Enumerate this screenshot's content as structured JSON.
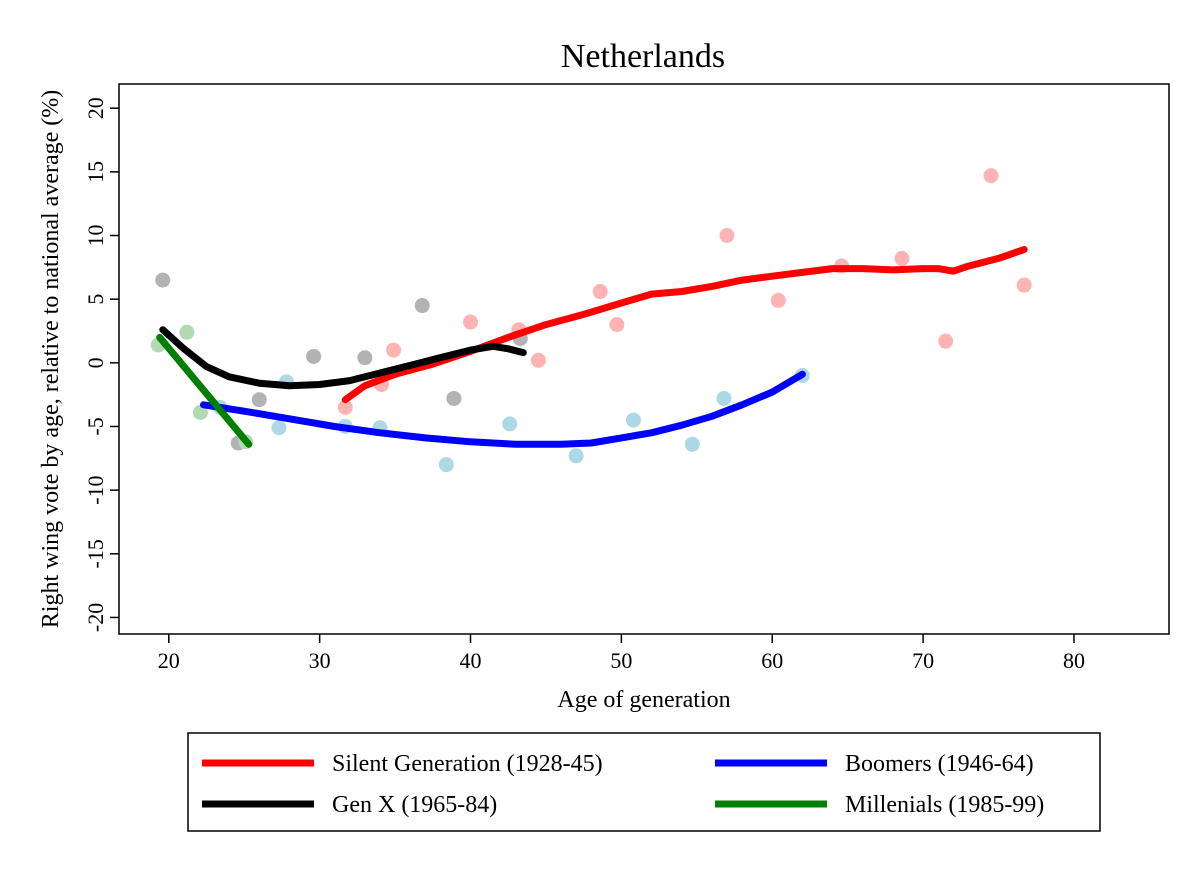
{
  "chart_data": {
    "type": "line",
    "title": "Netherlands",
    "xlabel": "Age of generation",
    "ylabel": "Right wing vote by age, relative to national average (%)",
    "xlim": [
      16.7,
      86.3
    ],
    "ylim": [
      -21.3,
      21.9
    ],
    "xticks": [
      20,
      30,
      40,
      50,
      60,
      70,
      80
    ],
    "yticks": [
      -20,
      -15,
      -10,
      -5,
      0,
      5,
      10,
      15,
      20
    ],
    "grid": false,
    "legend_position": "bottom",
    "series": [
      {
        "name": "Silent Generation (1928-45)",
        "color": "#ff0000",
        "point_color": "#ffb3b3",
        "points": [
          [
            31.7,
            -3.5
          ],
          [
            34.1,
            -1.7
          ],
          [
            34.9,
            1.0
          ],
          [
            40.0,
            3.2
          ],
          [
            43.2,
            2.6
          ],
          [
            44.5,
            0.2
          ],
          [
            48.6,
            5.6
          ],
          [
            49.7,
            3.0
          ],
          [
            57.0,
            10.0
          ],
          [
            60.4,
            4.9
          ],
          [
            64.6,
            7.6
          ],
          [
            68.6,
            8.2
          ],
          [
            71.5,
            1.7
          ],
          [
            74.5,
            14.7
          ],
          [
            76.7,
            6.1
          ]
        ],
        "fit": [
          [
            31.7,
            -2.9
          ],
          [
            33.0,
            -1.8
          ],
          [
            35.0,
            -0.9
          ],
          [
            37.5,
            -0.1
          ],
          [
            40.0,
            0.9
          ],
          [
            42.5,
            2.0
          ],
          [
            45.0,
            3.0
          ],
          [
            47.5,
            3.8
          ],
          [
            50.0,
            4.7
          ],
          [
            52.0,
            5.4
          ],
          [
            54.0,
            5.6
          ],
          [
            56.0,
            6.0
          ],
          [
            58.0,
            6.5
          ],
          [
            60.0,
            6.8
          ],
          [
            62.0,
            7.1
          ],
          [
            64.0,
            7.4
          ],
          [
            66.0,
            7.4
          ],
          [
            68.0,
            7.3
          ],
          [
            70.0,
            7.4
          ],
          [
            71.0,
            7.4
          ],
          [
            72.0,
            7.2
          ],
          [
            73.0,
            7.6
          ],
          [
            75.0,
            8.2
          ],
          [
            76.7,
            8.9
          ]
        ]
      },
      {
        "name": "Boomers (1946-64)",
        "color": "#0000ff",
        "point_color": "#add8e6",
        "points": [
          [
            23.4,
            -3.5
          ],
          [
            27.3,
            -5.1
          ],
          [
            27.8,
            -1.5
          ],
          [
            31.7,
            -5.0
          ],
          [
            34.0,
            -5.1
          ],
          [
            38.4,
            -8.0
          ],
          [
            42.6,
            -4.8
          ],
          [
            47.0,
            -7.3
          ],
          [
            50.8,
            -4.5
          ],
          [
            54.7,
            -6.4
          ],
          [
            56.8,
            -2.8
          ],
          [
            62.0,
            -1.0
          ]
        ],
        "fit": [
          [
            22.3,
            -3.3
          ],
          [
            25.0,
            -3.8
          ],
          [
            28.0,
            -4.4
          ],
          [
            31.0,
            -5.0
          ],
          [
            34.0,
            -5.5
          ],
          [
            37.0,
            -5.9
          ],
          [
            40.0,
            -6.2
          ],
          [
            43.0,
            -6.4
          ],
          [
            46.0,
            -6.4
          ],
          [
            48.0,
            -6.3
          ],
          [
            50.0,
            -5.9
          ],
          [
            52.0,
            -5.5
          ],
          [
            54.0,
            -4.9
          ],
          [
            56.0,
            -4.2
          ],
          [
            58.0,
            -3.3
          ],
          [
            60.0,
            -2.3
          ],
          [
            62.0,
            -0.9
          ]
        ]
      },
      {
        "name": "Gen X (1965-84)",
        "color": "#000000",
        "point_color": "#b3b3b3",
        "points": [
          [
            19.6,
            6.5
          ],
          [
            24.6,
            -6.3
          ],
          [
            26.0,
            -2.9
          ],
          [
            29.6,
            0.5
          ],
          [
            33.0,
            0.4
          ],
          [
            36.8,
            4.5
          ],
          [
            38.9,
            -2.8
          ],
          [
            43.3,
            1.9
          ]
        ],
        "fit": [
          [
            19.6,
            2.6
          ],
          [
            21.0,
            1.1
          ],
          [
            22.5,
            -0.3
          ],
          [
            24.0,
            -1.1
          ],
          [
            26.0,
            -1.6
          ],
          [
            28.0,
            -1.8
          ],
          [
            30.0,
            -1.7
          ],
          [
            32.0,
            -1.4
          ],
          [
            34.0,
            -0.8
          ],
          [
            36.0,
            -0.2
          ],
          [
            38.0,
            0.4
          ],
          [
            40.0,
            1.0
          ],
          [
            41.5,
            1.3
          ],
          [
            42.5,
            1.1
          ],
          [
            43.5,
            0.8
          ]
        ]
      },
      {
        "name": "Millenials (1985-99)",
        "color": "#007f00",
        "point_color": "#b3d9b3",
        "points": [
          [
            19.3,
            1.4
          ],
          [
            21.2,
            2.4
          ],
          [
            22.1,
            -3.9
          ],
          [
            25.1,
            -6.2
          ]
        ],
        "fit": [
          [
            19.4,
            2.0
          ],
          [
            25.3,
            -6.4
          ]
        ]
      }
    ]
  }
}
